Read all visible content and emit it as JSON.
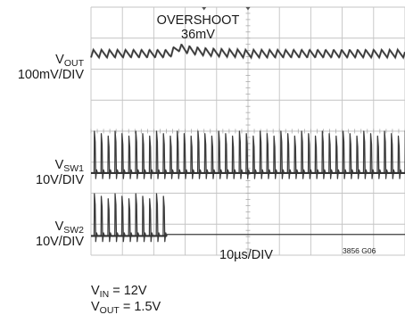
{
  "chart_data": {
    "type": "line",
    "title": "",
    "time_per_div": "10µs/DIV",
    "divisions": {
      "x": 10,
      "y": 8
    },
    "grid": true,
    "figure_id": "3856 G06",
    "annotation": {
      "line1": "OVERSHOOT",
      "line2": "36mV"
    },
    "channels": [
      {
        "name": "VOUT",
        "label_main": "V",
        "label_sub": "OUT",
        "scale": "100mV/DIV",
        "center_div": 6.5,
        "ripple_period_div": 0.255,
        "ripple_pp_div": 0.25,
        "overshoot": {
          "start_div": 2.5,
          "peak_div": 2.8,
          "end_div": 4.8,
          "peak_mV": 36
        }
      },
      {
        "name": "VSW1",
        "label_main": "V",
        "label_sub": "SW1",
        "scale": "10V/DIV",
        "baseline_div": 2.65,
        "pulse_high_div": 4.0,
        "pulse_period_div": 0.22
      },
      {
        "name": "VSW2",
        "label_main": "V",
        "label_sub": "SW2",
        "scale": "10V/DIV",
        "baseline_div": 0.62,
        "pulse_high_div": 1.98,
        "pulse_period_div": 0.22,
        "stop_div": 2.42
      }
    ],
    "conditions": [
      {
        "main": "V",
        "sub": "IN",
        "value": " = 12V"
      },
      {
        "main": "V",
        "sub": "OUT",
        "value": " = 1.5V"
      }
    ]
  }
}
